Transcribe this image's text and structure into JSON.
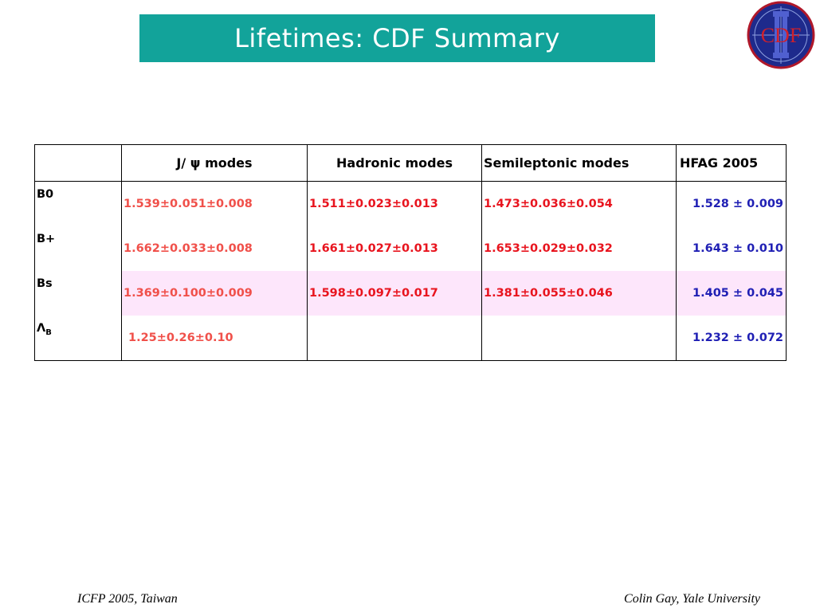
{
  "title": "Lifetimes: CDF Summary",
  "logo": {
    "icon": "cdf-ii-logo-icon",
    "text": "CDF",
    "roman": "II"
  },
  "table": {
    "headers": [
      "",
      "J/ ψ modes",
      "Hadronic modes",
      "Semileptonic  modes",
      "HFAG 2005"
    ],
    "rows": [
      {
        "label": "B0",
        "jpsi": "1.539±0.051±0.008",
        "hadronic": "1.511±0.023±0.013",
        "semileptonic": "1.473±0.036±0.054",
        "hfag": "1.528 ± 0.009"
      },
      {
        "label": "B+",
        "jpsi": "1.662±0.033±0.008",
        "hadronic": "1.661±0.027±0.013",
        "semileptonic": "1.653±0.029±0.032",
        "hfag": "1.643 ± 0.010"
      },
      {
        "label": "Bs",
        "jpsi": "1.369±0.100±0.009",
        "hadronic": "1.598±0.097±0.017",
        "semileptonic": " 1.381±0.055±0.046",
        "hfag": "1.405 ± 0.045"
      },
      {
        "label": "Λ",
        "label_sub": "B",
        "jpsi": "1.25±0.26±0.10",
        "hadronic": "",
        "semileptonic": "",
        "hfag": "1.232 ± 0.072"
      }
    ]
  },
  "colors": {
    "title_bg": "#12a39a",
    "value_red": "#e8141e",
    "value_blue": "#1f1fb4",
    "highlight_row": "#fde6fb"
  },
  "footer": {
    "left": "ICFP 2005, Taiwan",
    "right": "Colin Gay, Yale University"
  }
}
